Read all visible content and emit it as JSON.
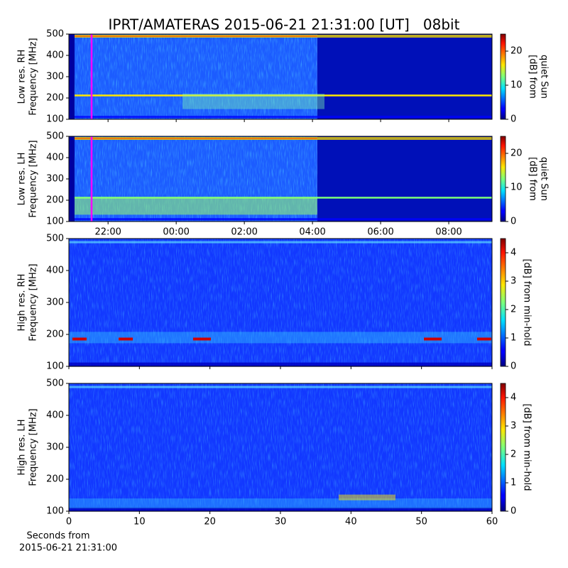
{
  "figure_title": "IPRT/AMATERAS 2015-06-21 21:31:00 [UT]   08bit",
  "chart_data": [
    {
      "type": "heatmap",
      "ylabel": [
        "Low res. RH",
        "Frequency [MHz]"
      ],
      "ylim": [
        100,
        500
      ],
      "yticks": [
        100,
        200,
        300,
        400,
        500
      ],
      "clim": [
        0,
        25
      ],
      "cticks": [
        0,
        10,
        20
      ],
      "clabel": [
        "[dB] from",
        "quiet Sun"
      ],
      "marker_x": 21.5167,
      "marker_color": "#ff00ff"
    },
    {
      "type": "heatmap",
      "ylabel": [
        "Low res. LH",
        "Frequency [MHz]"
      ],
      "ylim": [
        100,
        500
      ],
      "yticks": [
        100,
        200,
        300,
        400,
        500
      ],
      "xlim": [
        20.85,
        33.27
      ],
      "xticks": [
        {
          "value": 22,
          "label": "22:00"
        },
        {
          "value": 24,
          "label": "00:00"
        },
        {
          "value": 26,
          "label": "02:00"
        },
        {
          "value": 28,
          "label": "04:00"
        },
        {
          "value": 30,
          "label": "06:00"
        },
        {
          "value": 32,
          "label": "08:00"
        }
      ],
      "clim": [
        0,
        25
      ],
      "cticks": [
        0,
        10,
        20
      ],
      "clabel": [
        "[dB] from",
        "quiet Sun"
      ],
      "marker_x": 21.5167,
      "marker_color": "#ff00ff"
    },
    {
      "type": "heatmap",
      "ylabel": [
        "High res. RH",
        "Frequency [MHz]"
      ],
      "ylim": [
        100,
        500
      ],
      "yticks": [
        100,
        200,
        300,
        400,
        500
      ],
      "clim": [
        0,
        4.5
      ],
      "cticks": [
        0,
        1,
        2,
        3,
        4
      ],
      "clabel": [
        "[dB] from min-hold"
      ]
    },
    {
      "type": "heatmap",
      "ylabel": [
        "High res. LH",
        "Frequency [MHz]"
      ],
      "ylim": [
        100,
        500
      ],
      "yticks": [
        100,
        200,
        300,
        400,
        500
      ],
      "xlim": [
        0,
        60
      ],
      "xticks": [
        0,
        10,
        20,
        30,
        40,
        50,
        60
      ],
      "xlabel": [
        "Seconds from",
        "2015-06-21 21:31:00"
      ],
      "clim": [
        0,
        4.5
      ],
      "cticks": [
        0,
        1,
        2,
        3,
        4
      ],
      "clabel": [
        "[dB] from min-hold"
      ]
    }
  ]
}
